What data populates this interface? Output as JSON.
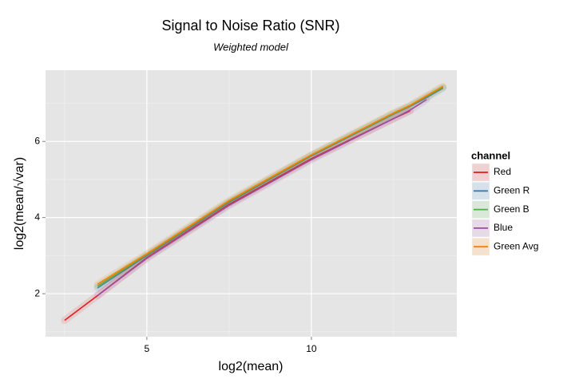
{
  "chart_data": {
    "type": "line",
    "title": "Signal to Noise Ratio (SNR)",
    "subtitle": "Weighted model",
    "x_label": "log2(mean)",
    "y_label": "log2(mean/√var)",
    "legend_title": "channel",
    "legend": "right",
    "grid": true,
    "x": [
      2.5,
      3.5,
      5,
      7.5,
      10,
      12.5,
      13,
      13.5,
      14
    ],
    "series": [
      {
        "name": "Red",
        "color": "#e41a1c",
        "values": [
          1.3,
          1.95,
          2.95,
          4.35,
          5.55,
          6.6,
          6.8,
          null,
          null
        ]
      },
      {
        "name": "Green R",
        "color": "#377eb8",
        "values": [
          null,
          2.15,
          3.0,
          4.4,
          5.62,
          6.72,
          6.92,
          7.15,
          7.4
        ]
      },
      {
        "name": "Green B",
        "color": "#4daf4a",
        "values": [
          null,
          2.2,
          3.02,
          4.42,
          5.63,
          6.73,
          6.93,
          7.18,
          7.42
        ]
      },
      {
        "name": "Blue",
        "color": "#984ea3",
        "values": [
          null,
          1.95,
          2.93,
          4.32,
          5.52,
          6.6,
          6.82,
          7.1,
          null
        ]
      },
      {
        "name": "Green Avg",
        "color": "#ff7f00",
        "values": [
          null,
          2.25,
          3.05,
          4.45,
          5.65,
          6.75,
          6.95,
          7.2,
          7.45
        ]
      }
    ],
    "xlim": [
      1.92,
      14.42
    ],
    "ylim": [
      0.87,
      7.87
    ],
    "xticks": [
      5,
      10
    ],
    "yticks": [
      2,
      4,
      6
    ],
    "xminor": [
      2.5,
      7.5,
      12.5
    ],
    "yminor": [
      1,
      3,
      5,
      7
    ]
  }
}
